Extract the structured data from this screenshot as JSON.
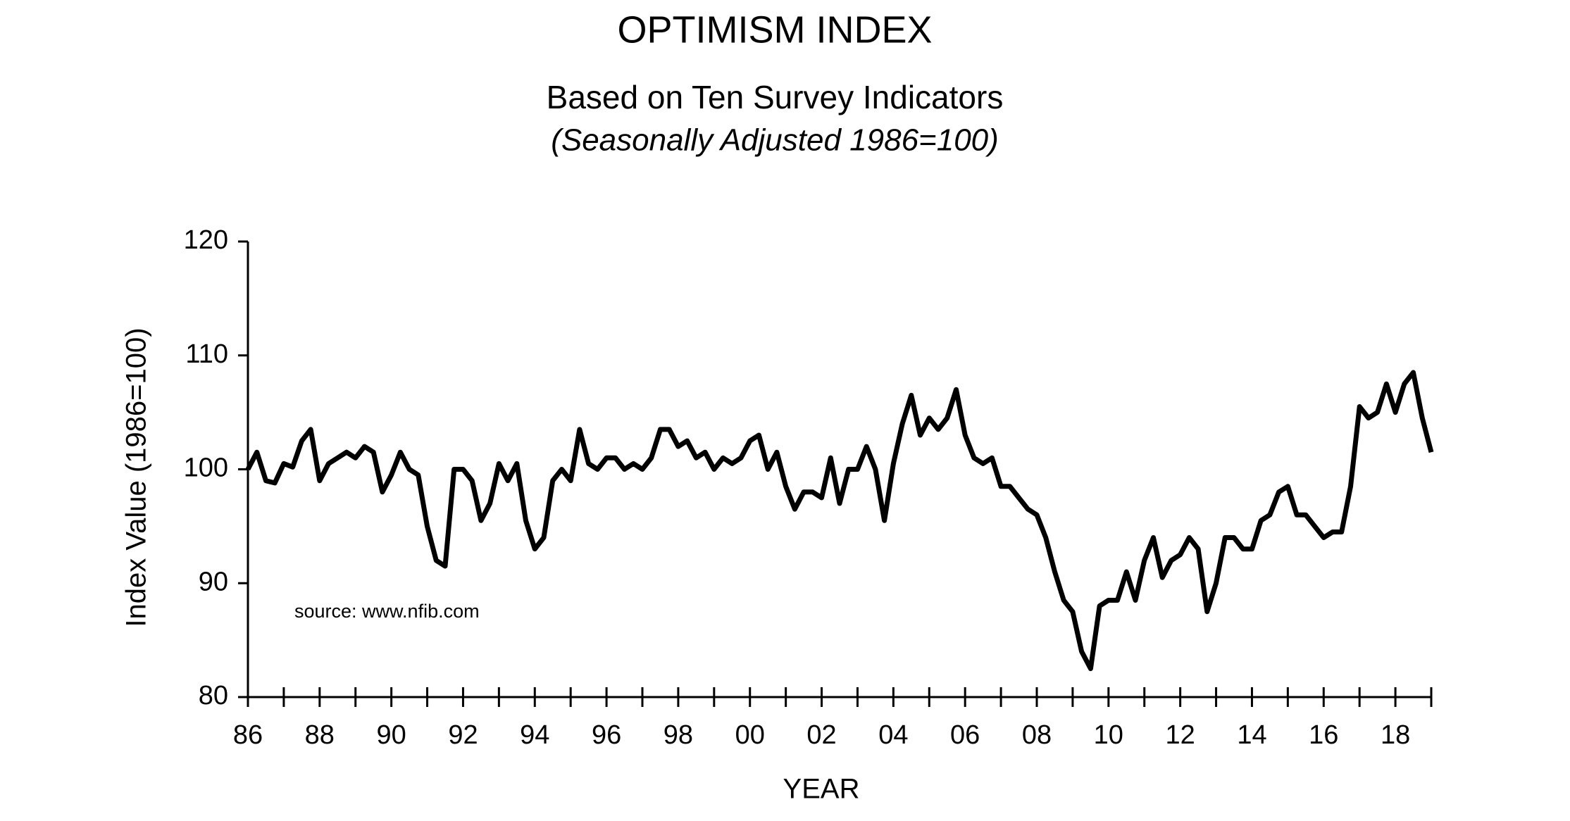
{
  "chart_data": {
    "type": "line",
    "title": "OPTIMISM INDEX",
    "subtitle": "Based on Ten Survey Indicators",
    "note": "(Seasonally Adjusted 1986=100)",
    "annotation": "source: www.nfib.com",
    "x_label": "YEAR",
    "y_label": "Index Value (1986=100)",
    "xlim": [
      1986,
      2019
    ],
    "ylim": [
      80,
      120
    ],
    "yticks": [
      80,
      90,
      100,
      110,
      120
    ],
    "xticks": [
      {
        "value": 1986,
        "label": "86"
      },
      {
        "value": 1988,
        "label": "88"
      },
      {
        "value": 1990,
        "label": "90"
      },
      {
        "value": 1992,
        "label": "92"
      },
      {
        "value": 1994,
        "label": "94"
      },
      {
        "value": 1996,
        "label": "96"
      },
      {
        "value": 1998,
        "label": "98"
      },
      {
        "value": 2000,
        "label": "00"
      },
      {
        "value": 2002,
        "label": "02"
      },
      {
        "value": 2004,
        "label": "04"
      },
      {
        "value": 2006,
        "label": "06"
      },
      {
        "value": 2008,
        "label": "08"
      },
      {
        "value": 2010,
        "label": "10"
      },
      {
        "value": 2012,
        "label": "12"
      },
      {
        "value": 2014,
        "label": "14"
      },
      {
        "value": 2016,
        "label": "16"
      },
      {
        "value": 2018,
        "label": "18"
      }
    ],
    "xminor_ticks": [
      1987,
      1989,
      1991,
      1993,
      1995,
      1997,
      1999,
      2001,
      2003,
      2005,
      2007,
      2009,
      2011,
      2013,
      2015,
      2017,
      2019
    ],
    "grid": false,
    "series": [
      {
        "color": "#000000",
        "x": [
          1986,
          1986.25,
          1986.5,
          1986.75,
          1987,
          1987.25,
          1987.5,
          1987.75,
          1988,
          1988.25,
          1988.5,
          1988.75,
          1989,
          1989.25,
          1989.5,
          1989.75,
          1990,
          1990.25,
          1990.5,
          1990.75,
          1991,
          1991.25,
          1991.5,
          1991.75,
          1992,
          1992.25,
          1992.5,
          1992.75,
          1993,
          1993.25,
          1993.5,
          1993.75,
          1994,
          1994.25,
          1994.5,
          1994.75,
          1995,
          1995.25,
          1995.5,
          1995.75,
          1996,
          1996.25,
          1996.5,
          1996.75,
          1997,
          1997.25,
          1997.5,
          1997.75,
          1998,
          1998.25,
          1998.5,
          1998.75,
          1999,
          1999.25,
          1999.5,
          1999.75,
          2000,
          2000.25,
          2000.5,
          2000.75,
          2001,
          2001.25,
          2001.5,
          2001.75,
          2002,
          2002.25,
          2002.5,
          2002.75,
          2003,
          2003.25,
          2003.5,
          2003.75,
          2004,
          2004.25,
          2004.5,
          2004.75,
          2005,
          2005.25,
          2005.5,
          2005.75,
          2006,
          2006.25,
          2006.5,
          2006.75,
          2007,
          2007.25,
          2007.5,
          2007.75,
          2008,
          2008.25,
          2008.5,
          2008.75,
          2009,
          2009.25,
          2009.5,
          2009.75,
          2010,
          2010.25,
          2010.5,
          2010.75,
          2011,
          2011.25,
          2011.5,
          2011.75,
          2012,
          2012.25,
          2012.5,
          2012.75,
          2013,
          2013.25,
          2013.5,
          2013.75,
          2014,
          2014.25,
          2014.5,
          2014.75,
          2015,
          2015.25,
          2015.5,
          2015.75,
          2016,
          2016.25,
          2016.5,
          2016.75,
          2017,
          2017.25,
          2017.5,
          2017.75,
          2018,
          2018.25,
          2018.5,
          2018.75,
          2019
        ],
        "values": [
          100,
          101.5,
          99,
          98.8,
          100.5,
          100.2,
          102.5,
          103.5,
          99,
          100.5,
          101,
          101.5,
          101,
          102,
          101.5,
          98,
          99.5,
          101.5,
          100,
          99.5,
          95,
          92,
          91.5,
          100,
          100,
          99,
          95.5,
          97,
          100.5,
          99,
          100.5,
          95.5,
          93,
          94,
          99,
          100,
          99,
          103.5,
          100.5,
          100,
          101,
          101,
          100,
          100.5,
          100,
          101,
          103.5,
          103.5,
          102,
          102.5,
          101,
          101.5,
          100,
          101,
          100.5,
          101,
          102.5,
          103,
          100,
          101.5,
          98.5,
          96.5,
          98,
          98,
          97.5,
          101,
          97,
          100,
          100,
          102,
          100,
          95.5,
          100.5,
          104,
          106.5,
          103,
          104.5,
          103.5,
          104.5,
          107,
          103,
          101,
          100.5,
          101,
          98.5,
          98.5,
          97.5,
          96.5,
          96,
          94,
          91,
          88.5,
          87.5,
          84,
          82.5,
          88,
          88.5,
          88.5,
          91,
          88.5,
          92,
          94,
          90.5,
          92,
          92.5,
          94,
          93,
          87.5,
          90,
          94,
          94,
          93,
          93,
          95.5,
          96,
          98,
          98.5,
          96,
          96,
          95,
          94,
          94.5,
          94.5,
          98.5,
          105.5,
          104.5,
          105,
          107.5,
          105,
          107.5,
          108.5,
          104.5,
          101.5
        ]
      }
    ]
  }
}
